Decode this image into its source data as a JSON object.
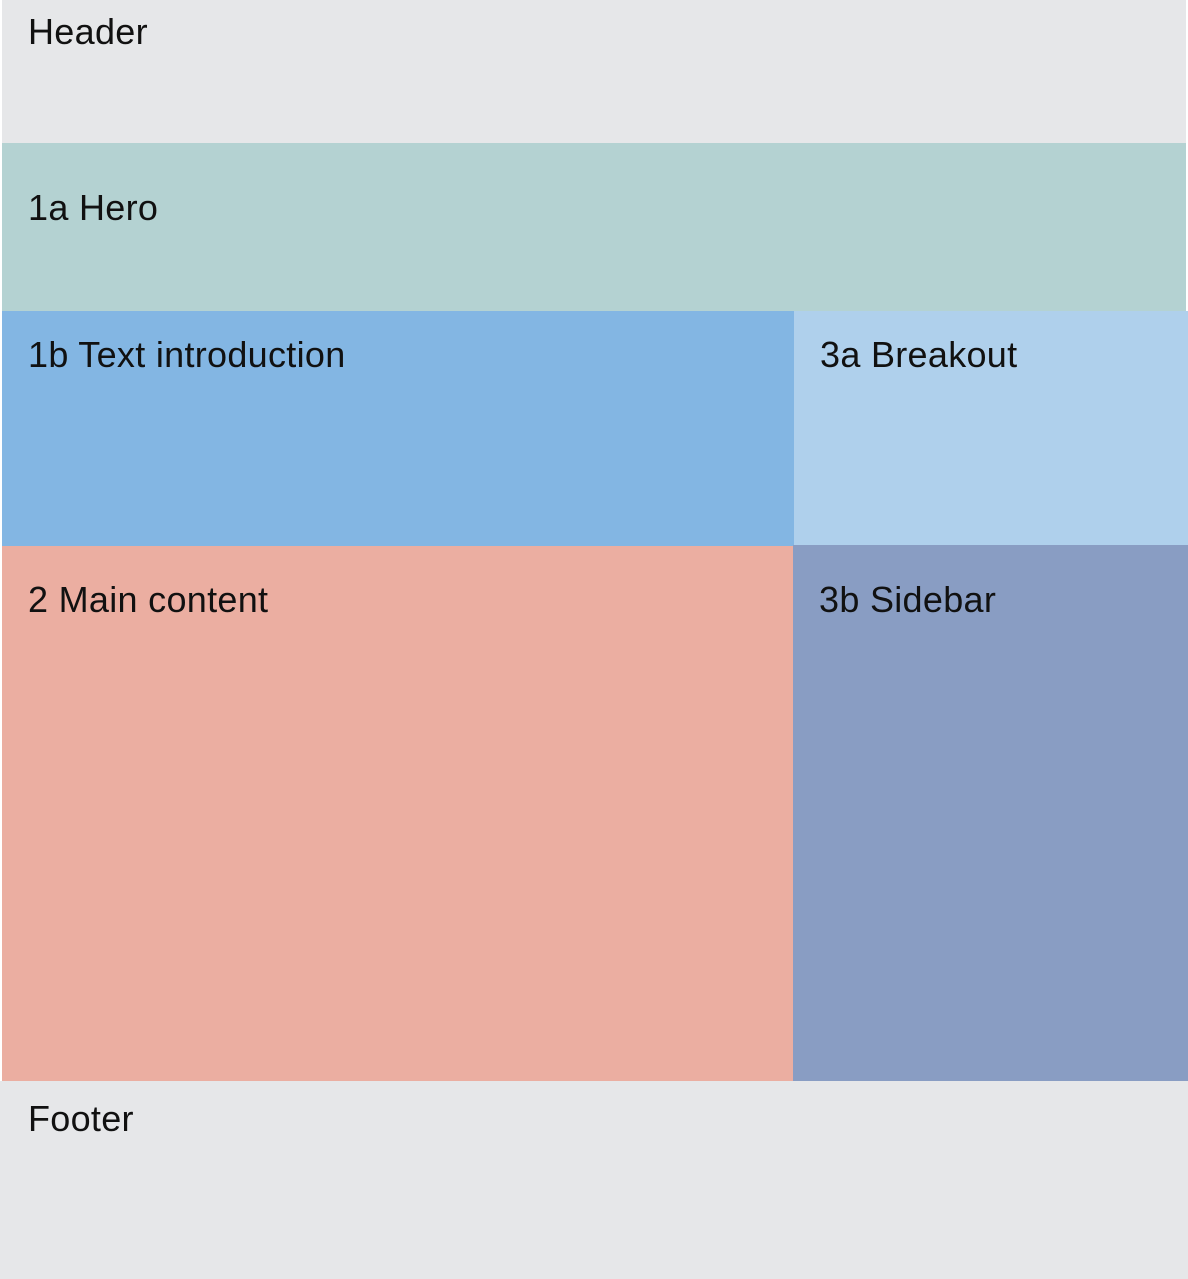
{
  "regions": {
    "header": {
      "label": "Header",
      "color": "#e6e7e9"
    },
    "hero": {
      "label": "1a Hero",
      "color": "#b4d2d2"
    },
    "intro": {
      "label": "1b Text introduction",
      "color": "#83b6e3"
    },
    "breakout": {
      "label": "3a Breakout",
      "color": "#afd0ec"
    },
    "main": {
      "label": "2 Main content",
      "color": "#ebaea1"
    },
    "sidebar": {
      "label": "3b Sidebar",
      "color": "#899dc3"
    },
    "footer": {
      "label": "Footer",
      "color": "#e6e7e9"
    }
  }
}
